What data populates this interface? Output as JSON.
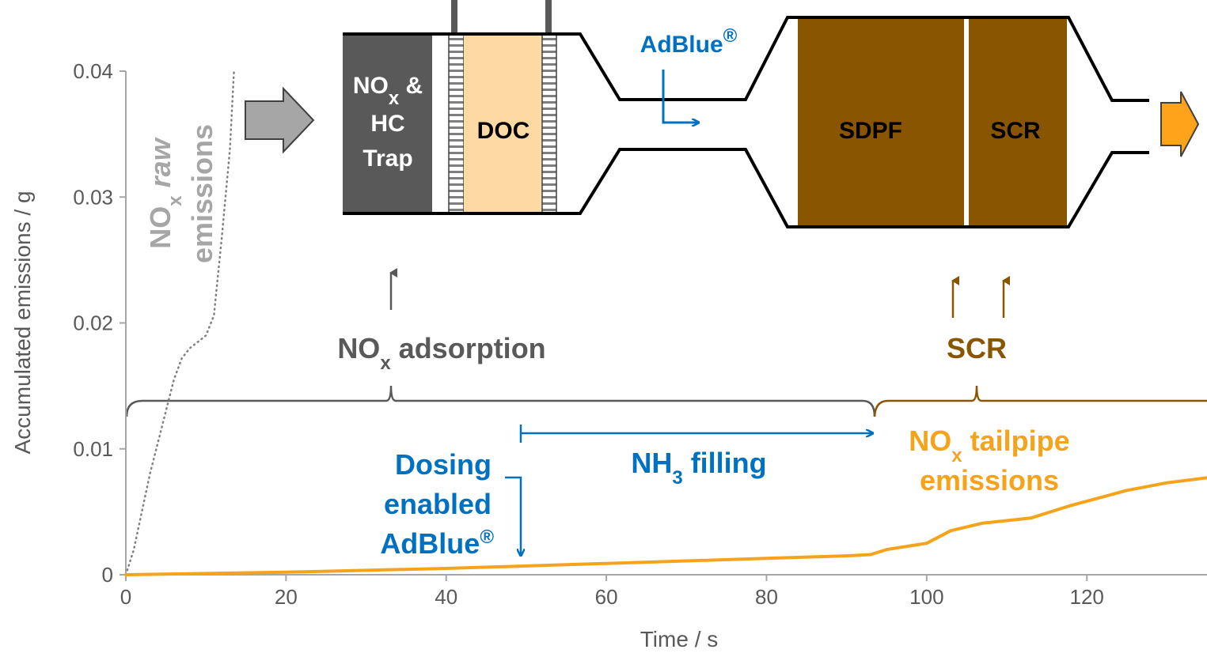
{
  "chart_data": {
    "type": "line",
    "x_label": "Time / s",
    "y_label": "Accumulated emissions / g",
    "xlim": [
      0,
      135
    ],
    "ylim": [
      0,
      0.04
    ],
    "xticks": [
      0,
      20,
      40,
      60,
      80,
      100,
      120
    ],
    "yticks": [
      0,
      0.01,
      0.02,
      0.03,
      0.04
    ],
    "series": [
      {
        "label": [
          "NO",
          "x",
          " raw",
          "emissions"
        ],
        "color": "#7f7f7f",
        "line_style": "dotted",
        "x": [
          0,
          1,
          2,
          3,
          4,
          5,
          6,
          7,
          8,
          9,
          10,
          11,
          12,
          13,
          13.5
        ],
        "values": [
          0,
          0.002,
          0.005,
          0.008,
          0.0105,
          0.013,
          0.0155,
          0.0172,
          0.018,
          0.0185,
          0.019,
          0.0206,
          0.0269,
          0.0338,
          0.04
        ]
      },
      {
        "label": [
          "NO",
          "x",
          " tailpipe",
          "emissions"
        ],
        "color": "#f5a31a",
        "line_style": "solid",
        "x": [
          0,
          20,
          40,
          50,
          60,
          70,
          80,
          90,
          93,
          95,
          100,
          103,
          107,
          113,
          118,
          125,
          130,
          135
        ],
        "values": [
          0,
          0.0002,
          0.0005,
          0.0007,
          0.0009,
          0.0011,
          0.0013,
          0.0015,
          0.0016,
          0.002,
          0.0025,
          0.0035,
          0.0041,
          0.0045,
          0.0055,
          0.0067,
          0.0073,
          0.0077
        ]
      }
    ],
    "annotations": {
      "adsorption": [
        "NO",
        "x",
        " adsorption"
      ],
      "scr": "SCR",
      "nh3_filling": [
        "NH",
        "3",
        " filling"
      ],
      "dosing": [
        "Dosing",
        "enabled",
        "AdBlue",
        "®"
      ]
    },
    "diagram": {
      "trap": [
        "NO",
        "x",
        " &",
        "HC",
        "Trap"
      ],
      "doc": "DOC",
      "sdpf": "SDPF",
      "scr": "SCR",
      "adblue": [
        "AdBlue",
        "®"
      ]
    }
  }
}
